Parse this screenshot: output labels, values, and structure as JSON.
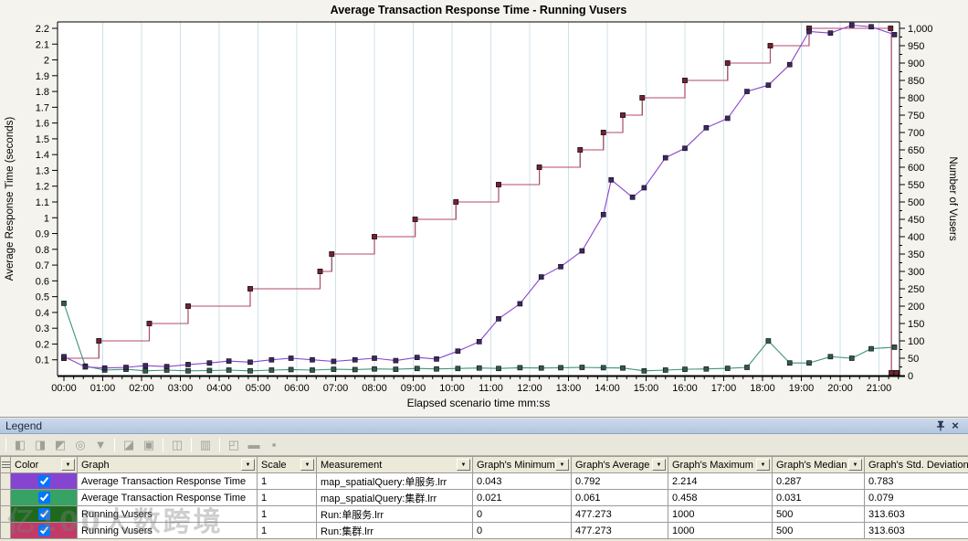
{
  "chart_data": {
    "type": "line",
    "title": "Average Transaction Response Time - Running Vusers",
    "xlabel": "Elapsed scenario time mm:ss",
    "ylabel_left": "Average Response Time (seconds)",
    "ylabel_right": "Number of Vusers",
    "x_unit": "minutes",
    "xlim": [
      0,
      21.6
    ],
    "ylim_left": [
      0,
      2.2
    ],
    "ytick_step_left": 0.1,
    "ylim_right": [
      0,
      1000
    ],
    "ytick_step_right": 50,
    "grid": "vertical-only",
    "grid_color": "#cfe0ea",
    "x_ticks": [
      "00:00",
      "01:00",
      "02:00",
      "03:00",
      "04:00",
      "05:00",
      "06:00",
      "07:00",
      "08:00",
      "09:00",
      "10:00",
      "11:00",
      "12:00",
      "13:00",
      "14:00",
      "15:00",
      "16:00",
      "17:00",
      "18:00",
      "19:00",
      "20:00",
      "21:00"
    ],
    "series": [
      {
        "name": "Running Vusers Run:单服务.lrr",
        "axis": "right",
        "step": true,
        "color": "#1e691e",
        "marker_color": "#143d14",
        "points": [
          [
            0,
            50
          ],
          [
            0.9,
            100
          ],
          [
            2.2,
            150
          ],
          [
            3.2,
            200
          ],
          [
            4.8,
            250
          ],
          [
            6.6,
            300
          ],
          [
            6.9,
            350
          ],
          [
            8.0,
            400
          ],
          [
            9.05,
            450
          ],
          [
            10.1,
            500
          ],
          [
            11.2,
            550
          ],
          [
            12.25,
            600
          ],
          [
            13.3,
            650
          ],
          [
            13.9,
            700
          ],
          [
            14.4,
            750
          ],
          [
            14.9,
            800
          ],
          [
            16.0,
            850
          ],
          [
            17.1,
            900
          ],
          [
            18.2,
            950
          ],
          [
            19.2,
            1000
          ],
          [
            21.3,
            1000
          ],
          [
            21.32,
            8
          ],
          [
            21.45,
            8
          ]
        ]
      },
      {
        "name": "Running Vusers Run:集群.lrr",
        "axis": "right",
        "step": true,
        "color": "#b34a6e",
        "marker_color": "#77212e",
        "points": [
          [
            0,
            50
          ],
          [
            0.9,
            100
          ],
          [
            2.2,
            150
          ],
          [
            3.2,
            200
          ],
          [
            4.8,
            250
          ],
          [
            6.6,
            300
          ],
          [
            6.9,
            350
          ],
          [
            8.0,
            400
          ],
          [
            9.05,
            450
          ],
          [
            10.1,
            500
          ],
          [
            11.2,
            550
          ],
          [
            12.25,
            600
          ],
          [
            13.3,
            650
          ],
          [
            13.9,
            700
          ],
          [
            14.4,
            750
          ],
          [
            14.9,
            800
          ],
          [
            16.0,
            850
          ],
          [
            17.1,
            900
          ],
          [
            18.2,
            950
          ],
          [
            19.2,
            1000
          ],
          [
            21.3,
            1000
          ],
          [
            21.32,
            8
          ],
          [
            21.45,
            8
          ]
        ]
      },
      {
        "name": "Average Transaction Response Time map_spatialQuery:集群.lrr",
        "axis": "left",
        "step": false,
        "color": "#3f947a",
        "marker_color": "#2e5c49",
        "points": [
          [
            0,
            0.458
          ],
          [
            0.55,
            0.06
          ],
          [
            1.05,
            0.035
          ],
          [
            1.6,
            0.04
          ],
          [
            2.1,
            0.03
          ],
          [
            2.65,
            0.035
          ],
          [
            3.2,
            0.03
          ],
          [
            3.75,
            0.032
          ],
          [
            4.25,
            0.035
          ],
          [
            4.8,
            0.03
          ],
          [
            5.35,
            0.035
          ],
          [
            5.85,
            0.038
          ],
          [
            6.4,
            0.035
          ],
          [
            6.95,
            0.04
          ],
          [
            7.5,
            0.038
          ],
          [
            8.0,
            0.042
          ],
          [
            8.55,
            0.04
          ],
          [
            9.1,
            0.045
          ],
          [
            9.6,
            0.042
          ],
          [
            10.15,
            0.045
          ],
          [
            10.7,
            0.048
          ],
          [
            11.2,
            0.045
          ],
          [
            11.75,
            0.05
          ],
          [
            12.3,
            0.048
          ],
          [
            12.8,
            0.05
          ],
          [
            13.35,
            0.052
          ],
          [
            13.9,
            0.05
          ],
          [
            14.4,
            0.048
          ],
          [
            14.95,
            0.03
          ],
          [
            15.5,
            0.035
          ],
          [
            16.0,
            0.04
          ],
          [
            16.55,
            0.042
          ],
          [
            17.1,
            0.046
          ],
          [
            17.6,
            0.052
          ],
          [
            18.15,
            0.22
          ],
          [
            18.7,
            0.08
          ],
          [
            19.2,
            0.08
          ],
          [
            19.75,
            0.12
          ],
          [
            20.3,
            0.11
          ],
          [
            20.8,
            0.17
          ],
          [
            21.4,
            0.18
          ]
        ]
      },
      {
        "name": "Average Transaction Response Time map_spatialQuery:单服务.lrr",
        "axis": "left",
        "step": false,
        "color": "#8a45cc",
        "marker_color": "#3d2766",
        "points": [
          [
            0,
            0.12
          ],
          [
            0.55,
            0.055
          ],
          [
            1.05,
            0.048
          ],
          [
            1.6,
            0.052
          ],
          [
            2.1,
            0.063
          ],
          [
            2.65,
            0.057
          ],
          [
            3.2,
            0.07
          ],
          [
            3.75,
            0.08
          ],
          [
            4.25,
            0.092
          ],
          [
            4.8,
            0.085
          ],
          [
            5.35,
            0.1
          ],
          [
            5.85,
            0.11
          ],
          [
            6.4,
            0.1
          ],
          [
            6.95,
            0.09
          ],
          [
            7.5,
            0.1
          ],
          [
            8.0,
            0.11
          ],
          [
            8.55,
            0.095
          ],
          [
            9.1,
            0.115
          ],
          [
            9.6,
            0.105
          ],
          [
            10.15,
            0.155
          ],
          [
            10.7,
            0.215
          ],
          [
            11.2,
            0.36
          ],
          [
            11.75,
            0.455
          ],
          [
            12.3,
            0.625
          ],
          [
            12.8,
            0.69
          ],
          [
            13.35,
            0.79
          ],
          [
            13.9,
            1.02
          ],
          [
            14.1,
            1.24
          ],
          [
            14.65,
            1.13
          ],
          [
            14.95,
            1.19
          ],
          [
            15.5,
            1.38
          ],
          [
            16.0,
            1.44
          ],
          [
            16.55,
            1.57
          ],
          [
            17.1,
            1.63
          ],
          [
            17.6,
            1.8
          ],
          [
            18.15,
            1.84
          ],
          [
            18.7,
            1.97
          ],
          [
            19.2,
            2.18
          ],
          [
            19.75,
            2.17
          ],
          [
            20.3,
            2.22
          ],
          [
            20.8,
            2.21
          ],
          [
            21.4,
            2.16
          ]
        ]
      }
    ]
  },
  "legend": {
    "title": "Legend",
    "watermark": "亿100大数跨境",
    "toolbar": {
      "buttons": [
        {
          "glyph": "◧"
        },
        {
          "glyph": "◨"
        },
        {
          "glyph": "◩"
        },
        {
          "glyph": "◎"
        },
        {
          "glyph": "▼"
        },
        {
          "glyph": "◪"
        },
        {
          "glyph": "▣"
        },
        {
          "glyph": "◫"
        },
        {
          "glyph": "▥"
        },
        {
          "glyph": "◰"
        },
        {
          "glyph": "▬"
        },
        {
          "glyph": "▪"
        }
      ]
    },
    "table": {
      "columns": [
        {
          "label": "Color"
        },
        {
          "label": "Graph"
        },
        {
          "label": "Scale"
        },
        {
          "label": "Measurement"
        },
        {
          "label": "Graph's Minimum"
        },
        {
          "label": "Graph's Average"
        },
        {
          "label": "Graph's Maximum"
        },
        {
          "label": "Graph's Median"
        },
        {
          "label": "Graph's Std. Deviation"
        }
      ],
      "rows": [
        {
          "color": "#8545d0",
          "checked": true,
          "graph": "Average Transaction Response Time",
          "scale": "1",
          "measurement": "map_spatialQuery:单服务.lrr",
          "min": "0.043",
          "avg": "0.792",
          "max": "2.214",
          "median": "0.287",
          "std": "0.783"
        },
        {
          "color": "#36a264",
          "checked": true,
          "graph": "Average Transaction Response Time",
          "scale": "1",
          "measurement": "map_spatialQuery:集群.lrr",
          "min": "0.021",
          "avg": "0.061",
          "max": "0.458",
          "median": "0.031",
          "std": "0.079"
        },
        {
          "color": "#1e691e",
          "checked": true,
          "graph": "Running Vusers",
          "scale": "1",
          "measurement": "Run:单服务.lrr",
          "min": "0",
          "avg": "477.273",
          "max": "1000",
          "median": "500",
          "std": "313.603"
        },
        {
          "color": "#c23a67",
          "checked": true,
          "graph": "Running Vusers",
          "scale": "1",
          "measurement": "Run:集群.lrr",
          "min": "0",
          "avg": "477.273",
          "max": "1000",
          "median": "500",
          "std": "313.603"
        }
      ]
    }
  }
}
